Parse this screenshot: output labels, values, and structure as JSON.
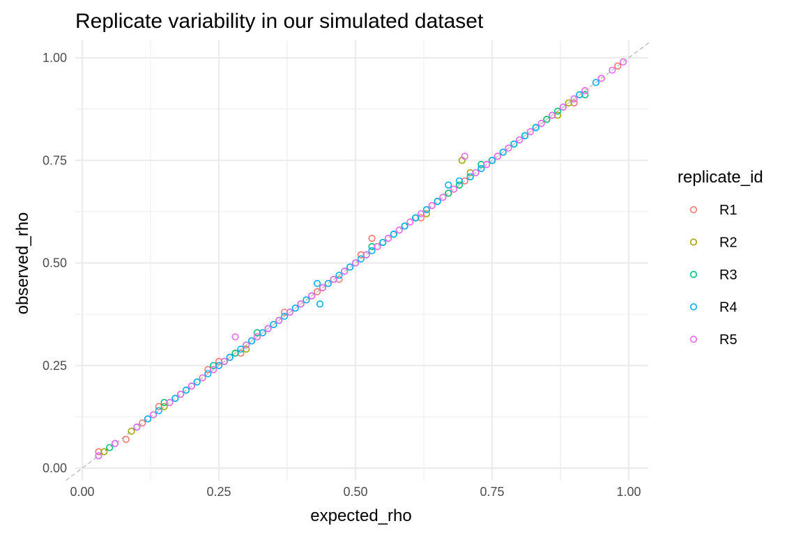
{
  "chart_data": {
    "type": "scatter",
    "title": "Replicate variability in our simulated dataset",
    "xlabel": "expected_rho",
    "ylabel": "observed_rho",
    "xlim": [
      0.0,
      1.0
    ],
    "ylim": [
      0.0,
      1.0
    ],
    "x_ticks": [
      "0.00",
      "0.25",
      "0.50",
      "0.75",
      "1.00"
    ],
    "y_ticks": [
      "0.00",
      "0.25",
      "0.50",
      "0.75",
      "1.00"
    ],
    "grid": true,
    "reference_line": {
      "slope": 1,
      "intercept": 0,
      "style": "dashed",
      "color": "#b3b3b3"
    },
    "legend": {
      "title": "replicate_id",
      "position": "right",
      "entries": [
        {
          "name": "R1",
          "color": "#F8766D"
        },
        {
          "name": "R2",
          "color": "#A3A500"
        },
        {
          "name": "R3",
          "color": "#00BF7D"
        },
        {
          "name": "R4",
          "color": "#00B0F6"
        },
        {
          "name": "R5",
          "color": "#E76BF3"
        }
      ]
    },
    "series": [
      {
        "name": "R1",
        "color": "#F8766D",
        "x": [
          0.03,
          0.08,
          0.11,
          0.14,
          0.16,
          0.18,
          0.2,
          0.23,
          0.25,
          0.27,
          0.29,
          0.31,
          0.33,
          0.35,
          0.37,
          0.39,
          0.41,
          0.43,
          0.45,
          0.47,
          0.49,
          0.51,
          0.53,
          0.54,
          0.56,
          0.58,
          0.6,
          0.62,
          0.64,
          0.66,
          0.68,
          0.7,
          0.72,
          0.74,
          0.76,
          0.78,
          0.8,
          0.82,
          0.84,
          0.86,
          0.88,
          0.9,
          0.92,
          0.95,
          0.98
        ],
        "y": [
          0.04,
          0.07,
          0.11,
          0.15,
          0.16,
          0.18,
          0.2,
          0.24,
          0.26,
          0.27,
          0.28,
          0.31,
          0.33,
          0.35,
          0.38,
          0.39,
          0.41,
          0.43,
          0.45,
          0.46,
          0.49,
          0.52,
          0.56,
          0.54,
          0.56,
          0.58,
          0.6,
          0.61,
          0.64,
          0.66,
          0.68,
          0.7,
          0.72,
          0.74,
          0.76,
          0.78,
          0.8,
          0.82,
          0.84,
          0.86,
          0.88,
          0.89,
          0.92,
          0.95,
          0.98
        ]
      },
      {
        "name": "R2",
        "color": "#A3A500",
        "x": [
          0.04,
          0.09,
          0.12,
          0.15,
          0.17,
          0.19,
          0.22,
          0.24,
          0.26,
          0.28,
          0.3,
          0.32,
          0.34,
          0.36,
          0.38,
          0.4,
          0.42,
          0.44,
          0.46,
          0.48,
          0.5,
          0.52,
          0.55,
          0.57,
          0.59,
          0.61,
          0.63,
          0.65,
          0.67,
          0.69,
          0.695,
          0.71,
          0.73,
          0.75,
          0.77,
          0.79,
          0.81,
          0.83,
          0.85,
          0.87,
          0.89,
          0.91
        ],
        "y": [
          0.04,
          0.09,
          0.12,
          0.15,
          0.17,
          0.19,
          0.22,
          0.24,
          0.26,
          0.28,
          0.29,
          0.32,
          0.34,
          0.36,
          0.38,
          0.4,
          0.42,
          0.44,
          0.46,
          0.48,
          0.5,
          0.52,
          0.55,
          0.57,
          0.59,
          0.61,
          0.62,
          0.65,
          0.67,
          0.69,
          0.75,
          0.72,
          0.73,
          0.75,
          0.77,
          0.79,
          0.81,
          0.83,
          0.85,
          0.86,
          0.89,
          0.91
        ]
      },
      {
        "name": "R3",
        "color": "#00BF7D",
        "x": [
          0.05,
          0.1,
          0.13,
          0.15,
          0.18,
          0.2,
          0.21,
          0.24,
          0.26,
          0.28,
          0.3,
          0.32,
          0.34,
          0.36,
          0.38,
          0.4,
          0.42,
          0.44,
          0.46,
          0.48,
          0.5,
          0.52,
          0.53,
          0.55,
          0.57,
          0.59,
          0.61,
          0.63,
          0.65,
          0.67,
          0.69,
          0.71,
          0.73,
          0.75,
          0.77,
          0.79,
          0.81,
          0.83,
          0.85,
          0.87,
          0.9,
          0.92
        ],
        "y": [
          0.05,
          0.1,
          0.13,
          0.16,
          0.18,
          0.2,
          0.21,
          0.25,
          0.26,
          0.28,
          0.3,
          0.33,
          0.34,
          0.36,
          0.38,
          0.4,
          0.42,
          0.44,
          0.46,
          0.48,
          0.5,
          0.52,
          0.54,
          0.55,
          0.57,
          0.59,
          0.61,
          0.63,
          0.65,
          0.67,
          0.69,
          0.71,
          0.74,
          0.75,
          0.77,
          0.79,
          0.81,
          0.83,
          0.85,
          0.87,
          0.9,
          0.91
        ]
      },
      {
        "name": "R4",
        "color": "#00B0F6",
        "x": [
          0.03,
          0.06,
          0.1,
          0.12,
          0.14,
          0.17,
          0.19,
          0.21,
          0.23,
          0.25,
          0.27,
          0.29,
          0.31,
          0.33,
          0.35,
          0.37,
          0.39,
          0.41,
          0.43,
          0.435,
          0.45,
          0.47,
          0.49,
          0.51,
          0.53,
          0.55,
          0.57,
          0.59,
          0.61,
          0.63,
          0.65,
          0.67,
          0.69,
          0.71,
          0.73,
          0.75,
          0.77,
          0.79,
          0.81,
          0.83,
          0.86,
          0.88,
          0.91,
          0.94
        ],
        "y": [
          0.03,
          0.06,
          0.1,
          0.12,
          0.14,
          0.17,
          0.19,
          0.21,
          0.23,
          0.25,
          0.27,
          0.29,
          0.31,
          0.33,
          0.35,
          0.37,
          0.39,
          0.41,
          0.45,
          0.4,
          0.45,
          0.47,
          0.49,
          0.51,
          0.53,
          0.55,
          0.57,
          0.59,
          0.61,
          0.63,
          0.65,
          0.69,
          0.7,
          0.71,
          0.73,
          0.75,
          0.77,
          0.79,
          0.81,
          0.83,
          0.86,
          0.88,
          0.91,
          0.94
        ]
      },
      {
        "name": "R5",
        "color": "#E76BF3",
        "x": [
          0.03,
          0.06,
          0.1,
          0.13,
          0.16,
          0.18,
          0.2,
          0.22,
          0.24,
          0.26,
          0.28,
          0.3,
          0.32,
          0.34,
          0.36,
          0.38,
          0.4,
          0.42,
          0.44,
          0.46,
          0.48,
          0.5,
          0.52,
          0.54,
          0.56,
          0.58,
          0.6,
          0.62,
          0.64,
          0.66,
          0.68,
          0.7,
          0.72,
          0.74,
          0.76,
          0.78,
          0.8,
          0.82,
          0.84,
          0.86,
          0.88,
          0.9,
          0.92,
          0.95,
          0.97,
          0.99
        ],
        "y": [
          0.03,
          0.06,
          0.1,
          0.13,
          0.16,
          0.18,
          0.2,
          0.22,
          0.24,
          0.26,
          0.32,
          0.3,
          0.32,
          0.34,
          0.36,
          0.38,
          0.4,
          0.42,
          0.44,
          0.46,
          0.48,
          0.5,
          0.52,
          0.54,
          0.56,
          0.58,
          0.6,
          0.62,
          0.64,
          0.66,
          0.68,
          0.76,
          0.72,
          0.74,
          0.76,
          0.78,
          0.8,
          0.82,
          0.84,
          0.86,
          0.88,
          0.9,
          0.92,
          0.95,
          0.97,
          0.99
        ]
      }
    ]
  }
}
